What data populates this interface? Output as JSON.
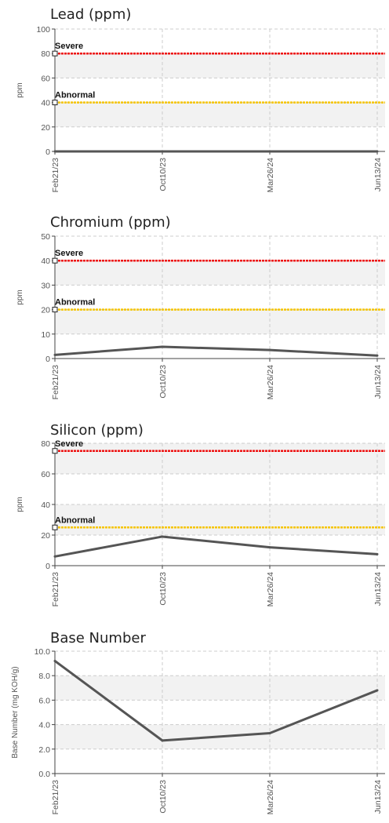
{
  "chart_data": [
    {
      "type": "line",
      "title": "Lead (ppm)",
      "ylabel": "ppm",
      "categories": [
        "Feb21/23",
        "Oct10/23",
        "Mar26/24",
        "Jun13/24"
      ],
      "ylim": [
        0,
        100
      ],
      "yticks": [
        "0",
        "20",
        "40",
        "60",
        "80",
        "100"
      ],
      "series": [
        {
          "values": [
            0,
            0,
            0,
            0
          ]
        }
      ],
      "thresholds": [
        {
          "label": "Severe",
          "value": 80,
          "color": "#ee1111"
        },
        {
          "label": "Abnormal",
          "value": 40,
          "color": "#f5c400"
        }
      ],
      "grid": true
    },
    {
      "type": "line",
      "title": "Chromium (ppm)",
      "ylabel": "ppm",
      "categories": [
        "Feb21/23",
        "Oct10/23",
        "Mar26/24",
        "Jun13/24"
      ],
      "ylim": [
        0,
        50
      ],
      "yticks": [
        "0",
        "10",
        "20",
        "30",
        "40",
        "50"
      ],
      "series": [
        {
          "values": [
            1.5,
            4.8,
            3.5,
            1.2
          ]
        }
      ],
      "thresholds": [
        {
          "label": "Severe",
          "value": 40,
          "color": "#ee1111"
        },
        {
          "label": "Abnormal",
          "value": 20,
          "color": "#f5c400"
        }
      ],
      "grid": true
    },
    {
      "type": "line",
      "title": "Silicon (ppm)",
      "ylabel": "ppm",
      "categories": [
        "Feb21/23",
        "Oct10/23",
        "Mar26/24",
        "Jun13/24"
      ],
      "ylim": [
        0,
        80
      ],
      "yticks": [
        "0",
        "20",
        "40",
        "60",
        "80"
      ],
      "series": [
        {
          "values": [
            6,
            19,
            12,
            7.5
          ]
        }
      ],
      "thresholds": [
        {
          "label": "Severe",
          "value": 75,
          "color": "#ee1111"
        },
        {
          "label": "Abnormal",
          "value": 25,
          "color": "#f5c400"
        }
      ],
      "grid": true
    },
    {
      "type": "line",
      "title": "Base Number",
      "ylabel": "Base Number (mg KOH/g)",
      "categories": [
        "Feb21/23",
        "Oct10/23",
        "Mar26/24",
        "Jun13/24"
      ],
      "ylim": [
        0,
        10
      ],
      "yticks": [
        "0.0",
        "2.0",
        "4.0",
        "6.0",
        "8.0",
        "10.0"
      ],
      "series": [
        {
          "values": [
            9.2,
            2.7,
            3.3,
            6.8
          ]
        }
      ],
      "thresholds": [],
      "grid": true
    }
  ],
  "colors": {
    "line": "#555555",
    "axis": "#444444",
    "grid": "#cccccc",
    "band": "#f2f2f2"
  }
}
